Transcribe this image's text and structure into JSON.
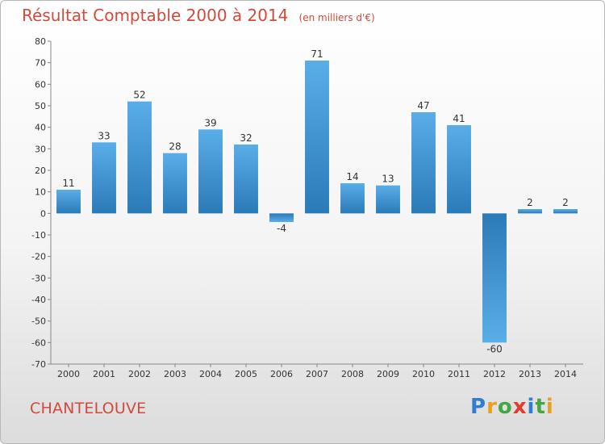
{
  "title": "Résultat Comptable 2000 à 2014",
  "subtitle": "(en milliers d'€)",
  "commune": "CHANTELOUVE",
  "logo": {
    "letters": [
      "P",
      "r",
      "o",
      "x",
      "i",
      "t",
      "i"
    ],
    "colors": [
      "#2f7fd0",
      "#e8a020",
      "#43a843",
      "#e23b2e",
      "#2f7fd0",
      "#43a843",
      "#e8a020"
    ]
  },
  "chart_data": {
    "type": "bar",
    "categories": [
      "2000",
      "2001",
      "2002",
      "2003",
      "2004",
      "2005",
      "2006",
      "2007",
      "2008",
      "2009",
      "2010",
      "2011",
      "2012",
      "2013",
      "2014"
    ],
    "values": [
      11,
      33,
      52,
      28,
      39,
      32,
      -4,
      71,
      14,
      13,
      47,
      41,
      -60,
      2,
      2
    ],
    "ylim": [
      -70,
      80
    ],
    "yticks": [
      80,
      70,
      60,
      50,
      40,
      30,
      20,
      10,
      0,
      -10,
      -20,
      -30,
      -40,
      -50,
      -60,
      -70
    ],
    "grid": false,
    "bar_color_light": "#5aaee8",
    "bar_color_dark": "#2a7ab8"
  }
}
